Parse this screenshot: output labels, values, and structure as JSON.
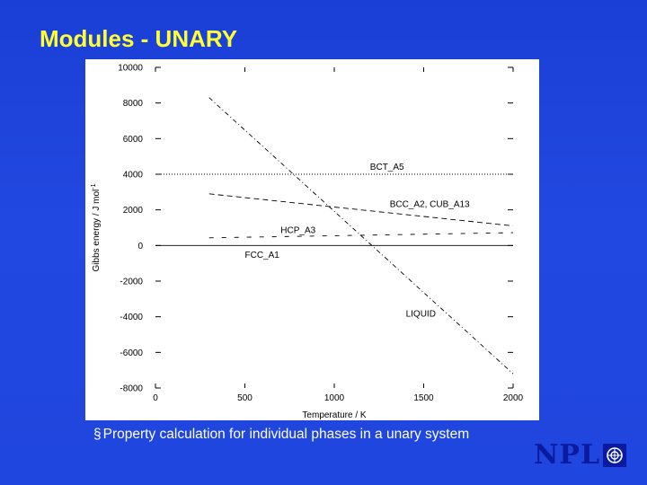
{
  "slide": {
    "title": "Modules - UNARY",
    "bullet_marker": "§",
    "bullet_text": "Property calculation for individual phases in a unary system"
  },
  "logo": {
    "text": "NPL"
  },
  "colors": {
    "background": "#1f46de",
    "title": "#ffff33",
    "logo": "#0b1a9e"
  },
  "chart_data": {
    "type": "line",
    "title": "",
    "xlabel": "Temperature / K",
    "ylabel": "Gibbs energy / J mol",
    "ylabel_superscript": "-1",
    "xlim": [
      0,
      2000
    ],
    "ylim": [
      -8000,
      10000
    ],
    "x_ticks": [
      0,
      500,
      1000,
      1500,
      2000
    ],
    "x_tick_labels": [
      "0",
      "500",
      "1000",
      "1500",
      "2000"
    ],
    "y_ticks": [
      -8000,
      -6000,
      -4000,
      -2000,
      0,
      2000,
      4000,
      6000,
      8000,
      10000
    ],
    "y_tick_labels": [
      "-8000",
      "-6000",
      "-4000",
      "-2000",
      "0",
      "2000",
      "4000",
      "6000",
      "8000",
      "10000"
    ],
    "grid": false,
    "legend": "none",
    "series": [
      {
        "name": "BCT_A5",
        "x": [
          0,
          2000
        ],
        "y": [
          4000,
          4000
        ],
        "style": "dotted"
      },
      {
        "name": "BCC_A2, CUB_A13",
        "x": [
          300,
          2000
        ],
        "y": [
          2900,
          1100
        ],
        "style": "dashed"
      },
      {
        "name": "HCP_A3",
        "x": [
          300,
          2000
        ],
        "y": [
          430,
          720
        ],
        "style": "sparse-dash"
      },
      {
        "name": "FCC_A1",
        "x": [
          0,
          2000
        ],
        "y": [
          0,
          0
        ],
        "style": "solid"
      },
      {
        "name": "LIQUID",
        "x": [
          300,
          2000
        ],
        "y": [
          8300,
          -7200
        ],
        "style": "dash-dot"
      }
    ]
  }
}
